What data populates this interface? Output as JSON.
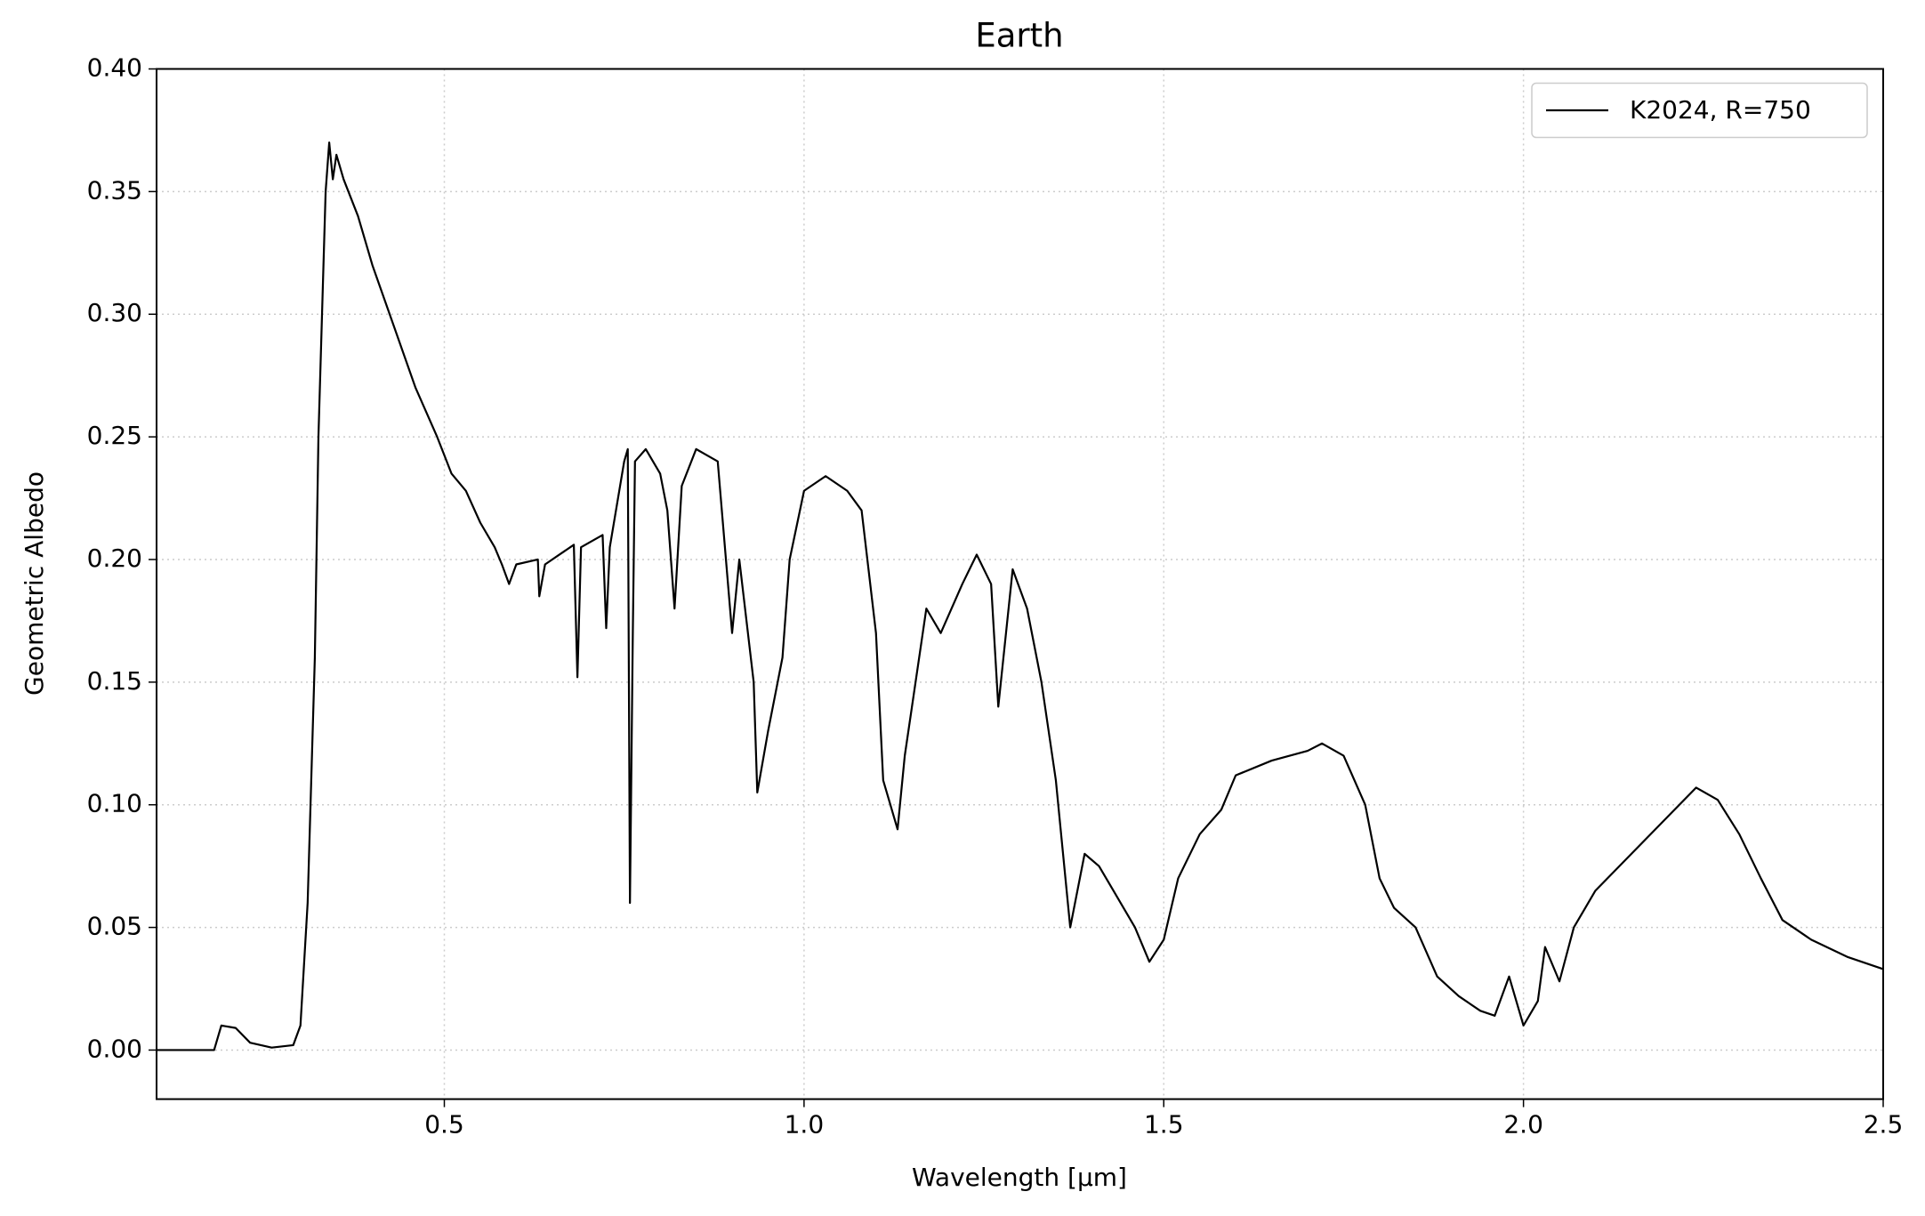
{
  "chart_data": {
    "type": "line",
    "title": "Earth",
    "xlabel": "Wavelength [μm]",
    "ylabel": "Geometric Albedo",
    "x": [
      0.1,
      0.18,
      0.19,
      0.21,
      0.23,
      0.26,
      0.29,
      0.3,
      0.31,
      0.32,
      0.325,
      0.33,
      0.335,
      0.34,
      0.345,
      0.35,
      0.36,
      0.38,
      0.4,
      0.43,
      0.46,
      0.49,
      0.51,
      0.53,
      0.55,
      0.57,
      0.58,
      0.59,
      0.6,
      0.63,
      0.632,
      0.64,
      0.66,
      0.68,
      0.685,
      0.69,
      0.72,
      0.725,
      0.73,
      0.75,
      0.755,
      0.758,
      0.762,
      0.765,
      0.78,
      0.8,
      0.81,
      0.82,
      0.83,
      0.85,
      0.88,
      0.9,
      0.91,
      0.93,
      0.935,
      0.95,
      0.97,
      0.98,
      1.0,
      1.03,
      1.06,
      1.08,
      1.1,
      1.11,
      1.13,
      1.14,
      1.15,
      1.17,
      1.19,
      1.22,
      1.24,
      1.26,
      1.27,
      1.29,
      1.31,
      1.33,
      1.35,
      1.36,
      1.37,
      1.39,
      1.41,
      1.43,
      1.46,
      1.48,
      1.5,
      1.52,
      1.55,
      1.58,
      1.6,
      1.65,
      1.7,
      1.72,
      1.75,
      1.78,
      1.8,
      1.82,
      1.85,
      1.88,
      1.91,
      1.94,
      1.96,
      1.98,
      2.0,
      2.02,
      2.03,
      2.05,
      2.07,
      2.1,
      2.15,
      2.2,
      2.24,
      2.27,
      2.3,
      2.33,
      2.36,
      2.4,
      2.45,
      2.5
    ],
    "series": [
      {
        "name": "K2024, R=750",
        "color": "#000000",
        "values": [
          0,
          0,
          0.01,
          0.009,
          0.003,
          0.001,
          0.002,
          0.01,
          0.06,
          0.16,
          0.25,
          0.3,
          0.35,
          0.37,
          0.355,
          0.365,
          0.355,
          0.34,
          0.32,
          0.295,
          0.27,
          0.25,
          0.235,
          0.228,
          0.215,
          0.205,
          0.198,
          0.19,
          0.198,
          0.2,
          0.185,
          0.198,
          0.202,
          0.206,
          0.152,
          0.205,
          0.21,
          0.172,
          0.205,
          0.24,
          0.245,
          0.06,
          0.17,
          0.24,
          0.245,
          0.235,
          0.22,
          0.18,
          0.23,
          0.245,
          0.24,
          0.17,
          0.2,
          0.15,
          0.105,
          0.13,
          0.16,
          0.2,
          0.228,
          0.234,
          0.228,
          0.22,
          0.17,
          0.11,
          0.09,
          0.12,
          0.14,
          0.18,
          0.17,
          0.19,
          0.202,
          0.19,
          0.14,
          0.196,
          0.18,
          0.15,
          0.11,
          0.08,
          0.05,
          0.08,
          0.075,
          0.065,
          0.05,
          0.036,
          0.045,
          0.07,
          0.088,
          0.098,
          0.112,
          0.118,
          0.122,
          0.125,
          0.12,
          0.1,
          0.07,
          0.058,
          0.05,
          0.03,
          0.022,
          0.016,
          0.014,
          0.03,
          0.01,
          0.02,
          0.042,
          0.028,
          0.05,
          0.065,
          0.08,
          0.095,
          0.107,
          0.102,
          0.088,
          0.07,
          0.053,
          0.045,
          0.038,
          0.033
        ]
      }
    ],
    "xlim": [
      0.1,
      2.5
    ],
    "ylim": [
      -0.02,
      0.4
    ],
    "xticks": [
      0.5,
      {
        "value": 1.0,
        "label": "1.0"
      },
      1.5,
      {
        "value": 2.0,
        "label": "2.0"
      },
      2.5
    ],
    "yticks": [
      {
        "value": 0,
        "label": "0.00"
      },
      0.05,
      {
        "value": 0.1,
        "label": "0.10"
      },
      0.15,
      {
        "value": 0.2,
        "label": "0.20"
      },
      0.25,
      {
        "value": 0.3,
        "label": "0.30"
      },
      0.35,
      {
        "value": 0.4,
        "label": "0.40"
      }
    ],
    "grid": true,
    "legend": "upper right"
  }
}
